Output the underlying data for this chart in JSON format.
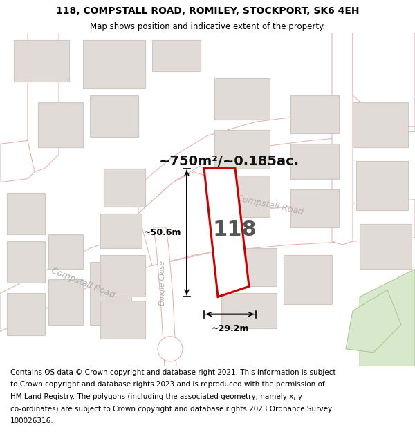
{
  "title_line1": "118, COMPSTALL ROAD, ROMILEY, STOCKPORT, SK6 4EH",
  "title_line2": "Map shows position and indicative extent of the property.",
  "footer_lines": [
    "Contains OS data © Crown copyright and database right 2021. This information is subject",
    "to Crown copyright and database rights 2023 and is reproduced with the permission of",
    "HM Land Registry. The polygons (including the associated geometry, namely x, y",
    "co-ordinates) are subject to Crown copyright and database rights 2023 Ordnance Survey",
    "100026316."
  ],
  "area_label": "~750m²/~0.185ac.",
  "property_number": "118",
  "dim_width": "~29.2m",
  "dim_height": "~50.6m",
  "road_label_compstall": "Compstall Road",
  "road_label_comp": "Compstall Road",
  "road_label_dingle": "Dingle Close",
  "map_bg": "#f8f6f4",
  "road_fill": "#ffffff",
  "road_stroke": "#e8aaaa",
  "road_stroke_thin": "#f0c0c0",
  "building_fill": "#e0dbd6",
  "building_stroke": "#d0c8c0",
  "highlight_fill": "#ffffff",
  "highlight_stroke": "#cc0000",
  "green_fill": "#d8e8cc",
  "green_stroke": "#b0c890",
  "title_fontsize": 10,
  "footer_fontsize": 7.5,
  "dim_fontsize": 9,
  "area_fontsize": 14,
  "number_fontsize": 22
}
